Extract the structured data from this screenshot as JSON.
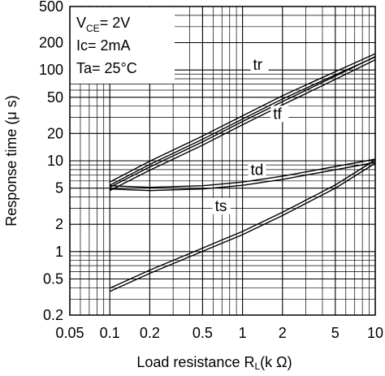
{
  "chart_data": {
    "type": "line",
    "x_scale": "log",
    "y_scale": "log",
    "xlim": [
      0.05,
      10
    ],
    "ylim": [
      0.2,
      500
    ],
    "xlabel": {
      "main": "Load resistance R",
      "sub": "L",
      "unit": "(k Ω)"
    },
    "ylabel": "Response time (μ s)",
    "x_ticks": [
      {
        "v": 0.05,
        "label": "0.05"
      },
      {
        "v": 0.1,
        "label": "0.1"
      },
      {
        "v": 0.2,
        "label": "0.2"
      },
      {
        "v": 0.5,
        "label": "0.5"
      },
      {
        "v": 1,
        "label": "1"
      },
      {
        "v": 2,
        "label": "2"
      },
      {
        "v": 5,
        "label": "5"
      },
      {
        "v": 10,
        "label": "10"
      }
    ],
    "y_ticks": [
      {
        "v": 0.2,
        "label": "0.2"
      },
      {
        "v": 0.5,
        "label": "0.5"
      },
      {
        "v": 1,
        "label": "1"
      },
      {
        "v": 2,
        "label": "2"
      },
      {
        "v": 5,
        "label": "5"
      },
      {
        "v": 10,
        "label": "10"
      },
      {
        "v": 20,
        "label": "20"
      },
      {
        "v": 50,
        "label": "50"
      },
      {
        "v": 100,
        "label": "100"
      },
      {
        "v": 200,
        "label": "200"
      },
      {
        "v": 500,
        "label": "500"
      }
    ],
    "grid": true,
    "conditions": {
      "vce": {
        "main": "V",
        "sub": "CE",
        "rest": "= 2V"
      },
      "ic": "Ic= 2mA",
      "ta": "Ta= 25°C"
    },
    "series": [
      {
        "name": "tr",
        "label_at": [
          1.2,
          100
        ],
        "x": [
          0.1,
          0.2,
          0.5,
          1,
          2,
          5,
          10
        ],
        "y": [
          5.6,
          9.5,
          18,
          30,
          50,
          92,
          145
        ]
      },
      {
        "name": "tf",
        "label_at": [
          1.7,
          29
        ],
        "x": [
          0.1,
          0.2,
          0.5,
          1,
          2,
          5,
          10
        ],
        "y": [
          4.9,
          8.2,
          15.5,
          26,
          43,
          82,
          135
        ]
      },
      {
        "name": "td",
        "label_at": [
          1.15,
          7.0
        ],
        "x": [
          0.1,
          0.2,
          0.5,
          1,
          2,
          5,
          10
        ],
        "y": [
          5.1,
          4.9,
          5.1,
          5.6,
          6.5,
          8.3,
          10
        ]
      },
      {
        "name": "ts",
        "label_at": [
          0.62,
          2.8
        ],
        "x": [
          0.1,
          0.2,
          0.5,
          1,
          2,
          5,
          10
        ],
        "y": [
          0.38,
          0.6,
          1.05,
          1.6,
          2.6,
          5.2,
          9.8
        ]
      }
    ]
  }
}
